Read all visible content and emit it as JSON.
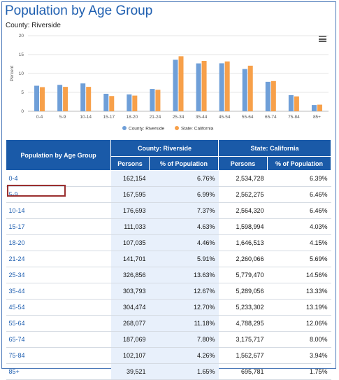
{
  "title": "Population by Age Group",
  "subtitle": "County: Riverside",
  "chart_data": {
    "type": "bar",
    "categories": [
      "0-4",
      "5-9",
      "10-14",
      "15-17",
      "18-20",
      "21-24",
      "25-34",
      "35-44",
      "45-54",
      "55-64",
      "65-74",
      "75-84",
      "85+"
    ],
    "series": [
      {
        "name": "County: Riverside",
        "color": "#6f9fd8",
        "values": [
          6.76,
          6.99,
          7.37,
          4.63,
          4.46,
          5.91,
          13.63,
          12.67,
          12.7,
          11.18,
          7.8,
          4.26,
          1.65
        ]
      },
      {
        "name": "State: California",
        "color": "#f7a04a",
        "values": [
          6.39,
          6.46,
          6.46,
          4.03,
          4.15,
          5.69,
          14.56,
          13.33,
          13.19,
          12.06,
          8.0,
          3.94,
          1.75
        ]
      }
    ],
    "ylabel": "Percent",
    "ylim": [
      0,
      20
    ],
    "yticks": [
      0,
      5,
      10,
      15,
      20
    ],
    "grid": true,
    "legend": "bottom"
  },
  "table": {
    "col_group": "Population by Age Group",
    "county_header": "County: Riverside",
    "state_header": "State: California",
    "sub_persons": "Persons",
    "sub_pct": "% of Population",
    "rows": [
      {
        "group": "0-4",
        "c_persons": "162,154",
        "c_pct": "6.76%",
        "s_persons": "2,534,728",
        "s_pct": "6.39%"
      },
      {
        "group": "5-9",
        "c_persons": "167,595",
        "c_pct": "6.99%",
        "s_persons": "2,562,275",
        "s_pct": "6.46%"
      },
      {
        "group": "10-14",
        "c_persons": "176,693",
        "c_pct": "7.37%",
        "s_persons": "2,564,320",
        "s_pct": "6.46%"
      },
      {
        "group": "15-17",
        "c_persons": "111,033",
        "c_pct": "4.63%",
        "s_persons": "1,598,994",
        "s_pct": "4.03%"
      },
      {
        "group": "18-20",
        "c_persons": "107,035",
        "c_pct": "4.46%",
        "s_persons": "1,646,513",
        "s_pct": "4.15%"
      },
      {
        "group": "21-24",
        "c_persons": "141,701",
        "c_pct": "5.91%",
        "s_persons": "2,260,066",
        "s_pct": "5.69%"
      },
      {
        "group": "25-34",
        "c_persons": "326,856",
        "c_pct": "13.63%",
        "s_persons": "5,779,470",
        "s_pct": "14.56%"
      },
      {
        "group": "35-44",
        "c_persons": "303,793",
        "c_pct": "12.67%",
        "s_persons": "5,289,056",
        "s_pct": "13.33%"
      },
      {
        "group": "45-54",
        "c_persons": "304,474",
        "c_pct": "12.70%",
        "s_persons": "5,233,302",
        "s_pct": "13.19%"
      },
      {
        "group": "55-64",
        "c_persons": "268,077",
        "c_pct": "11.18%",
        "s_persons": "4,788,295",
        "s_pct": "12.06%"
      },
      {
        "group": "65-74",
        "c_persons": "187,069",
        "c_pct": "7.80%",
        "s_persons": "3,175,717",
        "s_pct": "8.00%"
      },
      {
        "group": "75-84",
        "c_persons": "102,107",
        "c_pct": "4.26%",
        "s_persons": "1,562,677",
        "s_pct": "3.94%"
      },
      {
        "group": "85+",
        "c_persons": "39,521",
        "c_pct": "1.65%",
        "s_persons": "695,781",
        "s_pct": "1.75%"
      }
    ]
  },
  "menu_icon": "hamburger-menu-icon"
}
